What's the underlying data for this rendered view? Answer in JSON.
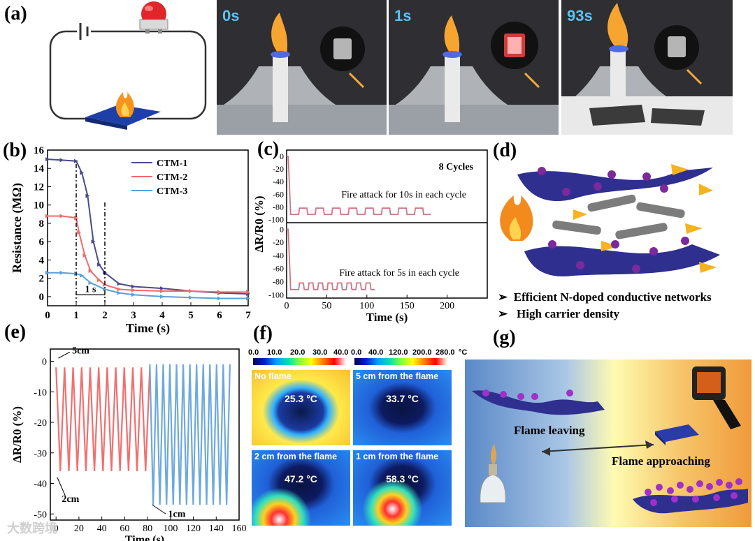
{
  "panels": {
    "a": "(a)",
    "b": "(b)",
    "c": "(c)",
    "d": "(d)",
    "e": "(e)",
    "f": "(f)",
    "g": "(g)"
  },
  "photos": [
    {
      "time": "0s"
    },
    {
      "time": "1s"
    },
    {
      "time": "93s"
    }
  ],
  "d_bullets": [
    "Efficient N-doped conductive networks",
    "High carrier density"
  ],
  "thermal": {
    "scale1_ticks": [
      "0.0",
      "10.0",
      "20.0",
      "30.0",
      "40.0"
    ],
    "scale2_ticks": [
      "0.0",
      "40.0",
      "120.0",
      "200.0",
      "280.0",
      "°C"
    ],
    "cells": [
      {
        "title": "No flame",
        "temp": "25.3 °C"
      },
      {
        "title": "5 cm from the flame",
        "temp": "33.7 °C"
      },
      {
        "title": "2 cm from the flame",
        "temp": "47.2 °C"
      },
      {
        "title": "1 cm from the flame",
        "temp": "58.3 °C"
      }
    ]
  },
  "g_labels": {
    "leaving": "Flame leaving",
    "approaching": "Flame approaching"
  },
  "watermark": "大数跨境",
  "colors": {
    "ctm1": "#4b4a8f",
    "ctm2": "#f06b6b",
    "ctm3": "#5aa0d8",
    "blue_e": "#6ea9dc",
    "red_e": "#f07070"
  },
  "chart_data": [
    {
      "id": "b",
      "type": "line",
      "xlabel": "Time (s)",
      "ylabel": "Resistance (MΩ)",
      "xlim": [
        0,
        7
      ],
      "ylim": [
        -1,
        16
      ],
      "xticks": [
        0,
        1,
        2,
        3,
        4,
        5,
        6,
        7
      ],
      "yticks": [
        0,
        2,
        4,
        6,
        8,
        10,
        12,
        14,
        16
      ],
      "annotation": "1 s",
      "series": [
        {
          "name": "CTM-1",
          "x": [
            0,
            0.5,
            1.0,
            1.2,
            1.4,
            1.6,
            1.8,
            2.0,
            2.5,
            3,
            4,
            5,
            6,
            7
          ],
          "y": [
            15,
            14.9,
            14.8,
            13.5,
            11,
            6,
            3.5,
            2.6,
            1.4,
            1.1,
            0.9,
            0.6,
            0.4,
            0.3
          ]
        },
        {
          "name": "CTM-2",
          "x": [
            0,
            0.5,
            1.0,
            1.1,
            1.3,
            1.5,
            1.8,
            2.0,
            2.5,
            3,
            4,
            5,
            6,
            7
          ],
          "y": [
            8.8,
            8.8,
            8.6,
            7,
            4.5,
            2.8,
            1.8,
            1.3,
            0.8,
            0.7,
            0.6,
            0.6,
            0.5,
            0.5
          ]
        },
        {
          "name": "CTM-3",
          "x": [
            0,
            0.5,
            1.0,
            1.2,
            1.5,
            2.0,
            2.5,
            3,
            4,
            5,
            6,
            7
          ],
          "y": [
            2.6,
            2.6,
            2.5,
            2.3,
            1.5,
            0.8,
            0.4,
            0.2,
            0,
            -0.1,
            -0.2,
            -0.2
          ]
        }
      ]
    },
    {
      "id": "c",
      "type": "line",
      "xlabel": "Time (s)",
      "ylabel": "ΔR/R0 (%)",
      "xlim": [
        0,
        250
      ],
      "xticks": [
        0,
        50,
        100,
        150,
        200
      ],
      "top": {
        "title": "8 Cycles",
        "note": "Fire attack for 10s in each cycle",
        "yticks": [
          0,
          -20,
          -40,
          -60,
          -80,
          -100
        ],
        "cycles": 8,
        "xend": 180
      },
      "bottom": {
        "note": "Fire attack for 5s in each cycle",
        "yticks": [
          0,
          -20,
          -40,
          -60,
          -80,
          -100
        ],
        "cycles": 8,
        "xend": 110
      }
    },
    {
      "id": "e",
      "type": "line",
      "xlabel": "Time (s)",
      "ylabel": "ΔR/R0 (%)",
      "xlim": [
        -5,
        160
      ],
      "ylim": [
        -52,
        4
      ],
      "xticks": [
        0,
        20,
        40,
        60,
        80,
        100,
        120,
        140,
        160
      ],
      "yticks": [
        0,
        -10,
        -20,
        -30,
        -40,
        -50
      ],
      "annotations": [
        "5cm",
        "2cm",
        "1cm"
      ],
      "series": [
        {
          "name": "2cm",
          "x_start": 0,
          "x_end": 82,
          "cycles": 11,
          "min": -36
        },
        {
          "name": "1cm",
          "x_start": 82,
          "x_end": 152,
          "cycles": 12,
          "min": -47
        }
      ]
    }
  ]
}
